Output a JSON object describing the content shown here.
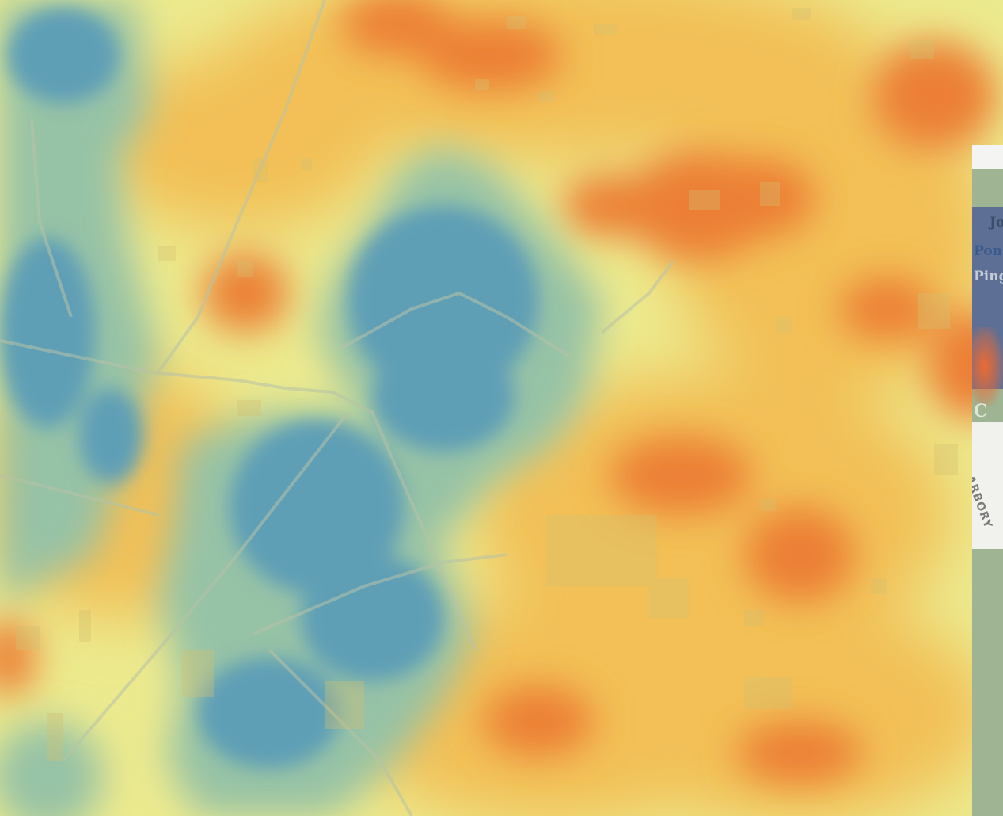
{
  "map": {
    "type": "heatmap",
    "palette": {
      "cool": "#5f9fb6",
      "mid_cool": "#96c2a6",
      "neutral": "#e6ea8c",
      "warm": "#f2c056",
      "hot": "#ec7f35",
      "road": "#b8c2a8",
      "building": "#d4c070"
    },
    "legend": null,
    "zoom_controls": null
  },
  "side_panel": {
    "labels": [
      "Jo",
      "Pon",
      "Ping",
      "C"
    ],
    "road_name": "ARBORY",
    "colors": {
      "water": "#5e6f95",
      "park": "#9eb493",
      "road": "#f1f1ee"
    }
  }
}
